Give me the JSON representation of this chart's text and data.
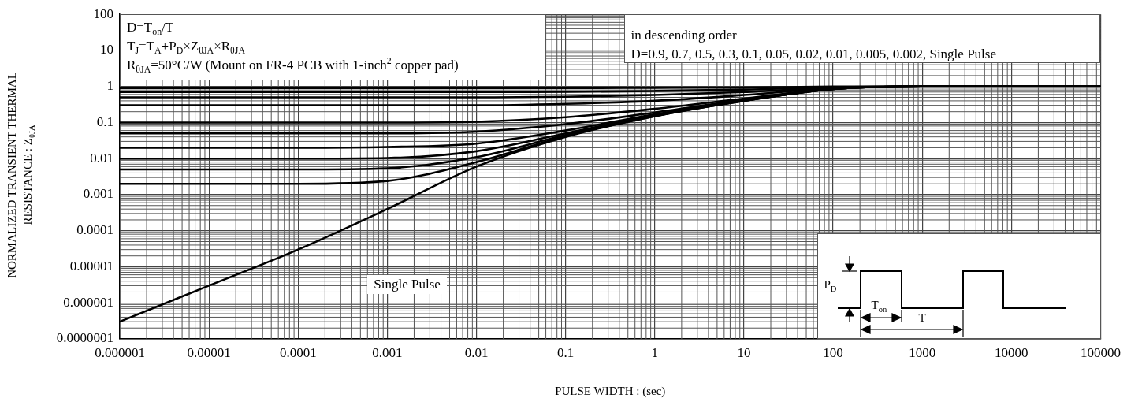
{
  "chart_data": {
    "type": "line",
    "xlabel": "PULSE WIDTH : (sec)",
    "ylabel": "NORMALIZED TRANSIENT THERMAL RESISTANCE : Z$_{θJA}$",
    "x": [
      1e-06,
      1e-05,
      0.0001,
      0.001,
      0.01,
      0.1,
      1,
      10,
      100,
      1000,
      10000,
      100000
    ],
    "series": [
      {
        "color": "#000000",
        "values": [
          0.9,
          0.9,
          0.9,
          0.9,
          0.9,
          0.9,
          0.92,
          0.94,
          0.99,
          1,
          1,
          1
        ]
      },
      {
        "color": "#000000",
        "values": [
          0.7,
          0.7,
          0.7,
          0.7,
          0.7,
          0.71,
          0.75,
          0.82,
          0.96,
          1,
          1,
          1
        ]
      },
      {
        "color": "#000000",
        "values": [
          0.5,
          0.5,
          0.5,
          0.5,
          0.5,
          0.52,
          0.58,
          0.7,
          0.93,
          1,
          1,
          1
        ]
      },
      {
        "color": "#000000",
        "values": [
          0.3,
          0.3,
          0.3,
          0.3,
          0.3,
          0.33,
          0.4,
          0.58,
          0.9,
          1,
          1,
          1
        ]
      },
      {
        "color": "#000000",
        "values": [
          0.1,
          0.1,
          0.1,
          0.1,
          0.105,
          0.14,
          0.24,
          0.46,
          0.87,
          1,
          1,
          1
        ]
      },
      {
        "color": "#000000",
        "values": [
          0.05,
          0.05,
          0.05,
          0.05,
          0.056,
          0.09,
          0.19,
          0.43,
          0.86,
          1,
          1,
          1
        ]
      },
      {
        "color": "#000000",
        "values": [
          0.02,
          0.02,
          0.02,
          0.021,
          0.026,
          0.06,
          0.17,
          0.41,
          0.85,
          1,
          1,
          1
        ]
      },
      {
        "color": "#000000",
        "values": [
          0.01,
          0.01,
          0.01,
          0.0104,
          0.016,
          0.05,
          0.16,
          0.41,
          0.85,
          1,
          1,
          1
        ]
      },
      {
        "color": "#000000",
        "values": [
          0.005,
          0.005,
          0.005,
          0.0054,
          0.011,
          0.045,
          0.155,
          0.4,
          0.85,
          1,
          1,
          1
        ]
      },
      {
        "color": "#000000",
        "values": [
          0.002,
          0.002,
          0.002,
          0.0024,
          0.008,
          0.042,
          0.15,
          0.4,
          0.85,
          1,
          1,
          1
        ]
      },
      {
        "color": "#000000",
        "values": [
          3e-07,
          3e-06,
          3e-05,
          0.0004,
          0.006,
          0.04,
          0.15,
          0.4,
          0.85,
          1,
          1,
          1
        ]
      }
    ],
    "xlim": [
      1e-06,
      100000
    ],
    "ylim": [
      1e-07,
      100
    ],
    "xticks": [
      {
        "value": 1e-06,
        "label": "0.000001"
      },
      {
        "value": 1e-05,
        "label": "0.00001"
      },
      0.0001,
      0.001,
      0.01,
      0.1,
      1,
      10,
      100,
      1000,
      10000,
      100000
    ],
    "yticks": [
      {
        "value": 1e-07,
        "label": "0.0000001"
      },
      {
        "value": 1e-06,
        "label": "0.000001"
      },
      {
        "value": 1e-05,
        "label": "0.00001"
      },
      0.0001,
      0.001,
      0.01,
      0.1,
      1,
      10,
      100
    ],
    "log": "xy",
    "grid": true,
    "marker": "none",
    "annotations": [
      "D=T$_{on}$/T",
      "T$_{J}$=T$_{A}$+P$_{D}$×Z$_{θJA}$×R$_{θJA}$",
      "R$_{θJA}$=50°C/W (Mount on FR-4 PCB with 1-inch$^{2}$ copper pad)",
      "in descending order",
      "D=0.9, 0.7,  0.5, 0.3, 0.1, 0.05, 0.02, 0.01, 0.005, 0.002, Single Pulse",
      "Single Pulse",
      "P$_{D}$",
      "T$_{on}$",
      "T"
    ]
  }
}
